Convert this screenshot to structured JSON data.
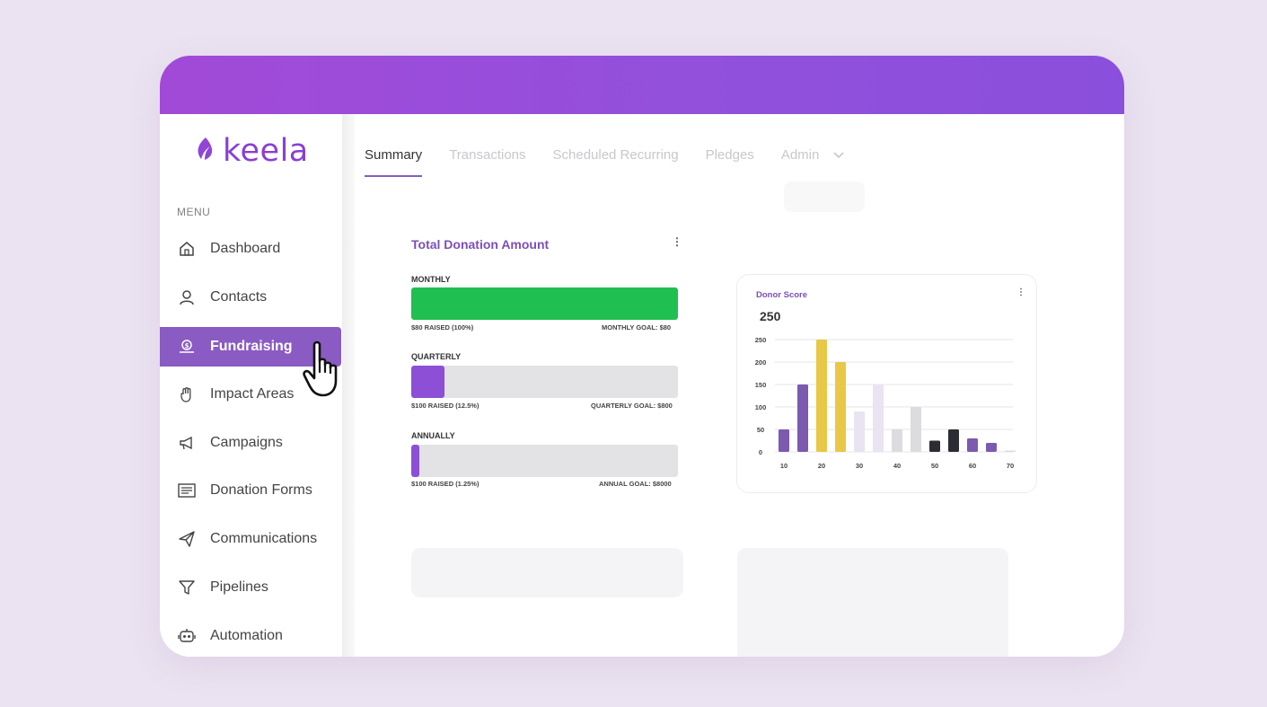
{
  "app": {
    "brand": "keela"
  },
  "sidebar": {
    "menu_caption": "MENU",
    "items": [
      {
        "label": "Dashboard",
        "icon": "home-icon"
      },
      {
        "label": "Contacts",
        "icon": "user-icon"
      },
      {
        "label": "Fundraising",
        "icon": "coin-hand-icon",
        "active": true
      },
      {
        "label": "Impact Areas",
        "icon": "hand-icon"
      },
      {
        "label": "Campaigns",
        "icon": "megaphone-icon"
      },
      {
        "label": "Donation Forms",
        "icon": "form-icon"
      },
      {
        "label": "Communications",
        "icon": "paper-plane-icon"
      },
      {
        "label": "Pipelines",
        "icon": "filter-icon"
      },
      {
        "label": "Automation",
        "icon": "robot-icon"
      }
    ]
  },
  "tabs": [
    {
      "label": "Summary",
      "active": true
    },
    {
      "label": "Transactions"
    },
    {
      "label": "Scheduled Recurring"
    },
    {
      "label": "Pledges"
    },
    {
      "label": "Admin"
    }
  ],
  "donation_panel": {
    "title": "Total Donation Amount",
    "bars": [
      {
        "label": "MONTHLY",
        "raised": "$80 RAISED (100%)",
        "goal": "MONTHLY GOAL: $80",
        "progress": 1.0,
        "color": "#1fbf52"
      },
      {
        "label": "QUARTERLY",
        "raised": "$100 RAISED (12.5%)",
        "goal": "QUARTERLY GOAL: $800",
        "progress": 0.125,
        "color": "#8c4fd6"
      },
      {
        "label": "ANNUALLY",
        "raised": "$100 RAISED (1.25%)",
        "goal": "ANNUAL GOAL: $8000",
        "progress": 0.0125,
        "color": "#8c4fd6"
      }
    ]
  },
  "donor_card": {
    "title": "Donor Score",
    "value": "250"
  },
  "chart_data": {
    "type": "bar",
    "title": "Donor Score",
    "xlabel": "",
    "ylabel": "",
    "x_ticks": [
      "10",
      "20",
      "30",
      "40",
      "50",
      "60",
      "70"
    ],
    "y_ticks": [
      "0",
      "50",
      "100",
      "150",
      "200",
      "250"
    ],
    "ylim": [
      0,
      250
    ],
    "grid": true,
    "bars": [
      {
        "x": 10,
        "value": 50,
        "color": "#7b5ab0"
      },
      {
        "x": 15,
        "value": 150,
        "color": "#7b5ab0"
      },
      {
        "x": 20,
        "value": 250,
        "color": "#e8c846"
      },
      {
        "x": 25,
        "value": 200,
        "color": "#e8c846"
      },
      {
        "x": 30,
        "value": 90,
        "color": "#e9e3f2"
      },
      {
        "x": 35,
        "value": 150,
        "color": "#e9e3f2"
      },
      {
        "x": 40,
        "value": 50,
        "color": "#dcdcdf"
      },
      {
        "x": 45,
        "value": 100,
        "color": "#dcdcdf"
      },
      {
        "x": 50,
        "value": 25,
        "color": "#2c2c33"
      },
      {
        "x": 55,
        "value": 50,
        "color": "#2c2c33"
      },
      {
        "x": 60,
        "value": 30,
        "color": "#7b5ab0"
      },
      {
        "x": 65,
        "value": 20,
        "color": "#7b5ab0"
      },
      {
        "x": 70,
        "value": 3,
        "color": "#dcdcdf"
      }
    ]
  }
}
